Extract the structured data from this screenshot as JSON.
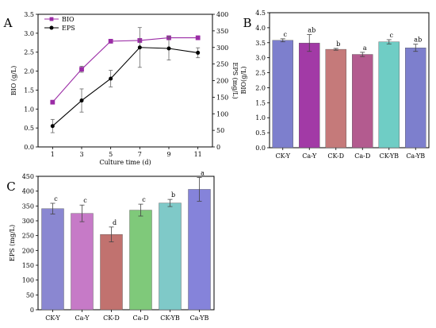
{
  "chart_data": [
    {
      "panel": "A",
      "type": "line",
      "x": [
        1,
        3,
        5,
        7,
        9,
        11
      ],
      "xlabel": "Culture time (d)",
      "xlim": [
        0,
        12
      ],
      "x_ticks": [
        "1",
        "3",
        "5",
        "7",
        "9",
        "11"
      ],
      "ylabel_left": "BIO (g/L)",
      "ylim_left": [
        0,
        3.5
      ],
      "y_ticks_left": [
        "0.0",
        "0.5",
        "1.0",
        "1.5",
        "2.0",
        "2.5",
        "3.0",
        "3.5"
      ],
      "ylabel_right": "EPS (mg/L)",
      "ylim_right": [
        0,
        400
      ],
      "y_ticks_right": [
        "0",
        "50",
        "100",
        "150",
        "200",
        "250",
        "300",
        "350",
        "400"
      ],
      "legend_position": "top-left",
      "series": [
        {
          "name": "BIO",
          "axis": "left",
          "color": "#9b2ca6",
          "marker": "square",
          "values": [
            1.18,
            2.05,
            2.79,
            2.81,
            2.88,
            2.88
          ],
          "errors": [
            0.05,
            0.08,
            0.05,
            0.05,
            0.05,
            0.05
          ]
        },
        {
          "name": "EPS",
          "axis": "right",
          "color": "#000000",
          "marker": "circle",
          "values": [
            63,
            140,
            206,
            300,
            297,
            284
          ],
          "errors": [
            20,
            35,
            25,
            60,
            35,
            15
          ]
        }
      ]
    },
    {
      "panel": "B",
      "type": "bar",
      "categories": [
        "CK-Y",
        "Ca-Y",
        "CK-D",
        "Ca-D",
        "CK-YB",
        "Ca-YB"
      ],
      "values": [
        3.58,
        3.49,
        3.28,
        3.11,
        3.53,
        3.33
      ],
      "errors": [
        0.05,
        0.28,
        0.03,
        0.07,
        0.07,
        0.12
      ],
      "labels": [
        "c",
        "ab",
        "b",
        "a",
        "c",
        "ab"
      ],
      "colors": [
        "#7d7fcd",
        "#a23aa6",
        "#c57a7a",
        "#b35b8f",
        "#6fcdc5",
        "#7d7fcd"
      ],
      "ylabel": "BIO(g/L)",
      "xlabel": "",
      "ylim": [
        0,
        4.5
      ],
      "y_ticks": [
        "0.0",
        "0.5",
        "1.0",
        "1.5",
        "2.0",
        "2.5",
        "3.0",
        "3.5",
        "4.0",
        "4.5"
      ]
    },
    {
      "panel": "C",
      "type": "bar",
      "categories": [
        "CK-Y",
        "Ca-Y",
        "CK-D",
        "Ca-D",
        "CK-YB",
        "Ca-YB"
      ],
      "values": [
        341,
        325,
        254,
        336,
        360,
        406
      ],
      "errors": [
        18,
        28,
        25,
        20,
        12,
        40
      ],
      "labels": [
        "c",
        "c",
        "d",
        "c",
        "b",
        "a"
      ],
      "colors": [
        "#8a87d1",
        "#c67ac7",
        "#c1726f",
        "#7fc97a",
        "#7fc9c8",
        "#8583da"
      ],
      "ylabel": "EPS (mg/L)",
      "xlabel": "",
      "ylim": [
        0,
        450
      ],
      "y_ticks": [
        "0",
        "50",
        "100",
        "150",
        "200",
        "250",
        "300",
        "350",
        "400",
        "450"
      ]
    }
  ]
}
